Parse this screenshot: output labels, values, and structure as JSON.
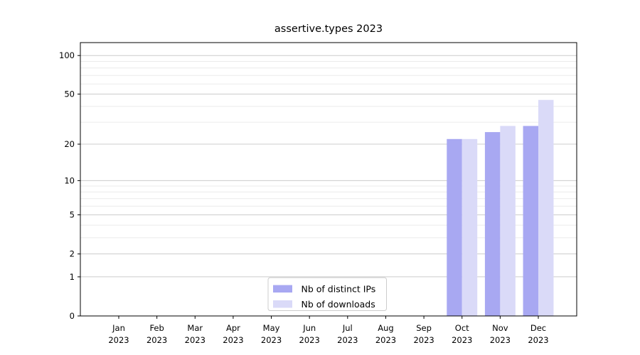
{
  "chart_data": {
    "type": "bar",
    "title": "assertive.types 2023",
    "categories": [
      "Jan",
      "Feb",
      "Mar",
      "Apr",
      "May",
      "Jun",
      "Jul",
      "Aug",
      "Sep",
      "Oct",
      "Nov",
      "Dec"
    ],
    "x_year": "2023",
    "series": [
      {
        "name": "Nb of distinct IPs",
        "color": "#a8a8f2",
        "values": [
          0,
          0,
          0,
          0,
          0,
          0,
          0,
          0,
          0,
          22,
          25,
          28
        ]
      },
      {
        "name": "Nb of downloads",
        "color": "#dadaf8",
        "values": [
          0,
          0,
          0,
          0,
          0,
          0,
          0,
          0,
          0,
          22,
          28,
          45
        ]
      }
    ],
    "xlabel": "",
    "ylabel": "",
    "y_scale": "log1p",
    "y_ticks": [
      0,
      1,
      2,
      5,
      10,
      20,
      50,
      100
    ],
    "y_minor_gridlines": [
      3,
      4,
      6,
      7,
      8,
      9,
      30,
      40,
      60,
      70,
      80,
      90
    ],
    "ylim": [
      0,
      126
    ],
    "grid": "horizontal",
    "legend_position": "lower center"
  },
  "colors": {
    "background": "#ffffff",
    "frame": "#000000",
    "grid_major": "#cccccc",
    "grid_minor": "#ebebeb",
    "legend_border": "#cccccc",
    "legend_background": "#ffffff",
    "text": "#000000"
  }
}
